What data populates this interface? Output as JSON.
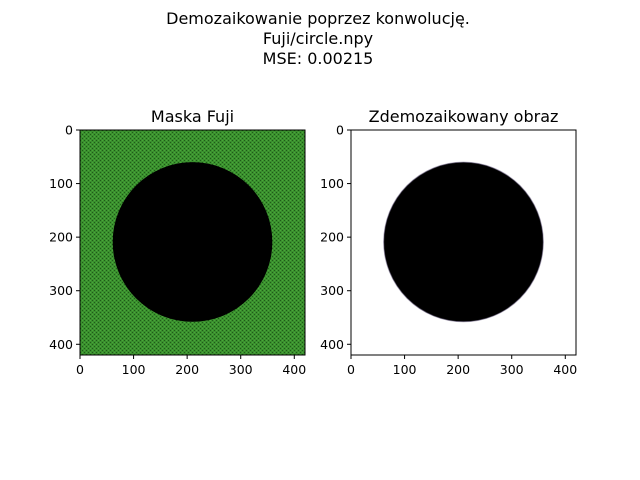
{
  "figure": {
    "suptitle": [
      "Demozaikowanie poprzez konwolucję.",
      "Fuji/circle.npy",
      "MSE: 0.00215"
    ]
  },
  "chart_data": [
    {
      "type": "image",
      "title": "Maska Fuji",
      "xticks": [
        0,
        100,
        200,
        300,
        400
      ],
      "yticks": [
        0,
        100,
        200,
        300,
        400
      ],
      "xlim": [
        0,
        420
      ],
      "ylim": [
        420,
        0
      ],
      "image_size": [
        420,
        420
      ],
      "background_color": "#3a8f2e",
      "circle": {
        "cx": 210,
        "cy": 209,
        "r": 149,
        "color": "#000000"
      }
    },
    {
      "type": "image",
      "title": "Zdemozaikowany obraz",
      "xticks": [
        0,
        100,
        200,
        300,
        400
      ],
      "yticks": [
        0,
        100,
        200,
        300,
        400
      ],
      "xlim": [
        0,
        420
      ],
      "ylim": [
        420,
        0
      ],
      "image_size": [
        420,
        420
      ],
      "background_color": "#ffffff",
      "circle": {
        "cx": 210,
        "cy": 209,
        "r": 149,
        "color": "#000000"
      }
    }
  ]
}
